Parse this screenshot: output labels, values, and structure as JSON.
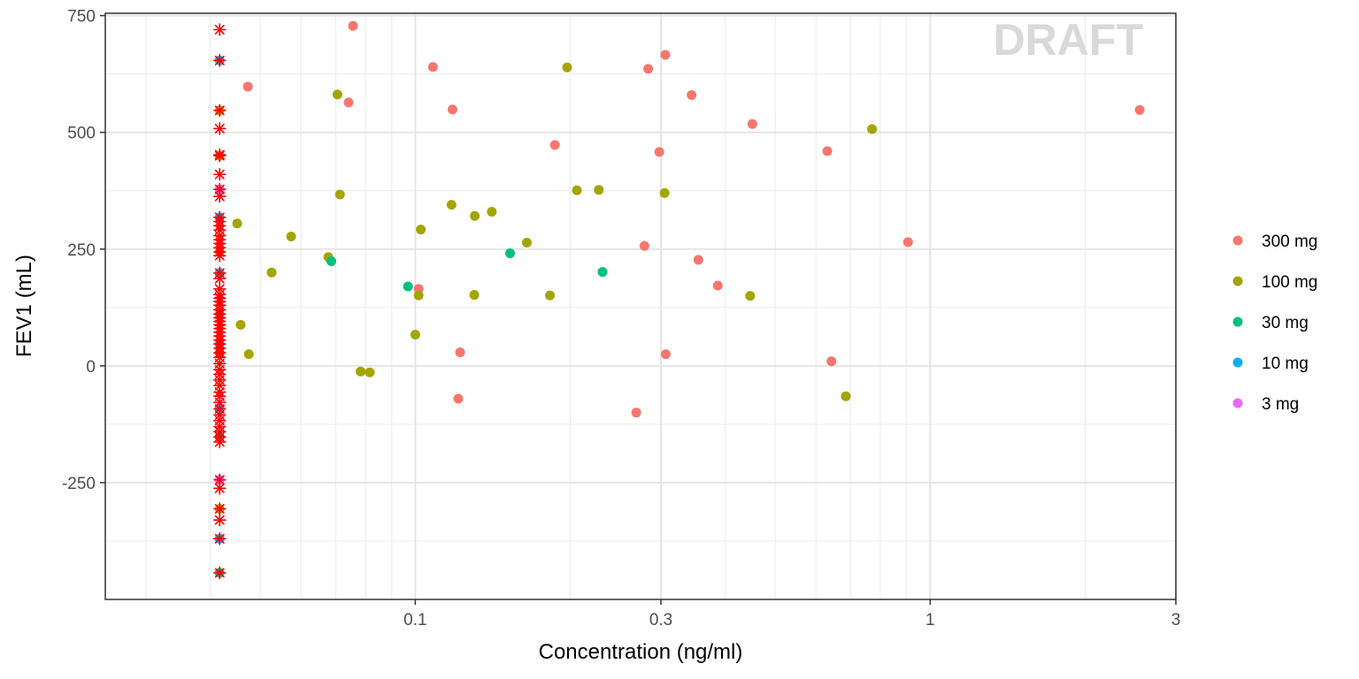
{
  "chart_data": {
    "type": "scatter",
    "xlabel": "Concentration (ng/ml)",
    "ylabel": "FEV1 (mL)",
    "x_scale": "log10",
    "xlim": [
      0.025,
      3.0
    ],
    "ylim": [
      -500,
      755
    ],
    "x_ticks": [
      0.1,
      0.3,
      1,
      3
    ],
    "x_tick_labels": [
      "0.1",
      "0.3",
      "1",
      "3"
    ],
    "y_ticks": [
      -250,
      0,
      250,
      500,
      750
    ],
    "y_tick_labels": [
      "-250",
      "0",
      "250",
      "500",
      "750"
    ],
    "grid": true,
    "legend_position": "right",
    "watermark": "DRAFT",
    "series": [
      {
        "name": "300 mg",
        "color": "#F8766D",
        "points": [
          [
            0.0473,
            598
          ],
          [
            0.0757,
            728
          ],
          [
            0.0742,
            564
          ],
          [
            0.1082,
            640
          ],
          [
            0.1181,
            549
          ],
          [
            0.1015,
            165
          ],
          [
            0.1222,
            29
          ],
          [
            0.1212,
            -70
          ],
          [
            0.1867,
            473
          ],
          [
            0.2686,
            -100
          ],
          [
            0.2786,
            257
          ],
          [
            0.2833,
            636
          ],
          [
            0.2978,
            458
          ],
          [
            0.3059,
            666
          ],
          [
            0.3065,
            25
          ],
          [
            0.3441,
            580
          ],
          [
            0.3546,
            227
          ],
          [
            0.3868,
            172
          ],
          [
            0.4515,
            518
          ],
          [
            0.6313,
            460
          ],
          [
            0.6431,
            10
          ],
          [
            0.9056,
            265
          ],
          [
            2.552,
            548
          ]
        ]
      },
      {
        "name": "100 mg",
        "color": "#A3A500",
        "points": [
          [
            0.0451,
            305
          ],
          [
            0.0458,
            88
          ],
          [
            0.0475,
            25
          ],
          [
            0.0526,
            200
          ],
          [
            0.0574,
            277
          ],
          [
            0.0678,
            233
          ],
          [
            0.0706,
            581
          ],
          [
            0.0714,
            367
          ],
          [
            0.0783,
            -12
          ],
          [
            0.0816,
            -14
          ],
          [
            0.1,
            67
          ],
          [
            0.1015,
            151
          ],
          [
            0.1025,
            292
          ],
          [
            0.1176,
            345
          ],
          [
            0.1305,
            321
          ],
          [
            0.1302,
            152
          ],
          [
            0.1408,
            330
          ],
          [
            0.1647,
            264
          ],
          [
            0.1826,
            151
          ],
          [
            0.1972,
            639
          ],
          [
            0.206,
            376
          ],
          [
            0.2272,
            377
          ],
          [
            0.3049,
            370
          ],
          [
            0.4471,
            150
          ],
          [
            0.6857,
            -65
          ],
          [
            0.7709,
            507
          ]
        ]
      },
      {
        "name": "30 mg",
        "color": "#00BF7D",
        "points": [
          [
            0.0687,
            224
          ],
          [
            0.0968,
            170
          ],
          [
            0.1528,
            241
          ],
          [
            0.231,
            201
          ]
        ]
      },
      {
        "name": "10 mg",
        "color": "#00B0F6",
        "points": []
      },
      {
        "name": "3 mg",
        "color": "#E76BF3",
        "points": []
      }
    ],
    "below_loq": {
      "x": 0.0417,
      "marker": "asterisk",
      "marker_color": "#FF0000",
      "y": [
        720,
        654,
        547,
        508,
        452,
        450,
        410,
        378,
        363,
        318,
        309,
        300,
        291,
        279,
        270,
        262,
        253,
        244,
        236,
        199,
        187,
        165,
        153,
        145,
        138,
        130,
        120,
        111,
        103,
        95,
        88,
        80,
        72,
        64,
        55,
        47,
        38,
        28,
        18,
        5,
        -8,
        -18,
        -30,
        -42,
        -56,
        -65,
        -78,
        -92,
        -105,
        -117,
        -130,
        -141,
        -152,
        -163,
        -244,
        -262,
        -306,
        -330,
        -370,
        -443
      ],
      "underlays": [
        {
          "y": 654,
          "color": "#00B0F6"
        },
        {
          "y": 547,
          "color": "#A3A500"
        },
        {
          "y": 450,
          "color": "#A3A500"
        },
        {
          "y": 318,
          "color": "#00B0F6"
        },
        {
          "y": 244,
          "color": "#A3A500"
        },
        {
          "y": 199,
          "color": "#00B0F6"
        },
        {
          "y": 111,
          "color": "#A3A500"
        },
        {
          "y": 47,
          "color": "#00BF7D"
        },
        {
          "y": 28,
          "color": "#A3A500"
        },
        {
          "y": -92,
          "color": "#00B0F6"
        },
        {
          "y": -152,
          "color": "#00BF7D"
        },
        {
          "y": -306,
          "color": "#A3A500"
        },
        {
          "y": -370,
          "color": "#00B0F6"
        },
        {
          "y": -443,
          "color": "#00BF7D"
        },
        {
          "y": 378,
          "color": "#E76BF3"
        },
        {
          "y": -244,
          "color": "#E76BF3"
        }
      ]
    }
  }
}
